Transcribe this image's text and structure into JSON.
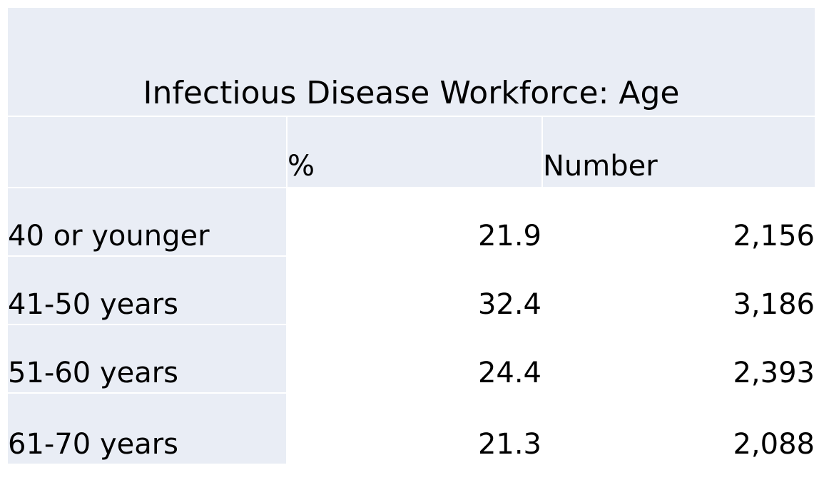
{
  "title": "Infectious Disease Workforce: Age",
  "columns": [
    "",
    "%",
    "Number"
  ],
  "rows": [
    {
      "label": "40 or younger",
      "pct": "21.9",
      "number": "2,156"
    },
    {
      "label": "41-50 years",
      "pct": "32.4",
      "number": "3,186"
    },
    {
      "label": "51-60 years",
      "pct": "24.4",
      "number": "2,393"
    },
    {
      "label": "61-70 years",
      "pct": "21.3",
      "number": "2,088"
    }
  ],
  "colors": {
    "header_fill": "#e9edf5",
    "body_fill": "#ffffff",
    "text": "#000000"
  }
}
